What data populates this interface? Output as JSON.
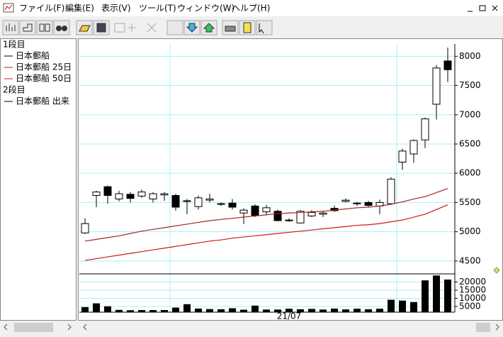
{
  "window": {
    "menu": [
      "ファイル(F)",
      "編集(E)",
      "表示(V)",
      "ツール(T)",
      "ウィンドウ(W)",
      "ヘルプ(H)"
    ]
  },
  "chart_data": {
    "type": "candlestick",
    "grid": true,
    "grid_color": "#a8f0f4",
    "categories": [
      null,
      null,
      null,
      null,
      null,
      null,
      null,
      null,
      null,
      null,
      null,
      null,
      null,
      null,
      null,
      null,
      null,
      null,
      "21/07",
      null,
      null,
      null,
      null,
      null,
      null,
      null,
      null,
      null,
      null,
      null,
      null,
      null,
      null
    ],
    "panes": [
      {
        "label": "1段目",
        "ylim": [
          4280,
          8210
        ],
        "yticks": [
          4500,
          5000,
          5500,
          6000,
          6500,
          7000,
          7500,
          8000
        ],
        "series": [
          {
            "name": "日本郵船",
            "type": "candlestick",
            "color": "#000000",
            "up_color": "#ffffff",
            "down_color": "#000000",
            "open": [
              4980,
              5620,
              5770,
              5560,
              5640,
              5610,
              5560,
              5630,
              5620,
              5520,
              5430,
              5540,
              5480,
              5490,
              5320,
              5440,
              5340,
              5350,
              5200,
              5150,
              5270,
              5300,
              5400,
              5520,
              5480,
              5500,
              5440,
              5480,
              6190,
              6330,
              6570,
              7180,
              7920
            ],
            "high": [
              5230,
              5700,
              5790,
              5700,
              5680,
              5720,
              5680,
              5680,
              5650,
              5560,
              5620,
              5650,
              5500,
              5560,
              5400,
              5470,
              5460,
              5380,
              5230,
              5370,
              5370,
              5360,
              5450,
              5570,
              5510,
              5530,
              5550,
              5930,
              6420,
              6580,
              6950,
              7850,
              8150
            ],
            "low": [
              4960,
              5420,
              5480,
              5520,
              5500,
              5580,
              5500,
              5530,
              5360,
              5300,
              5380,
              5500,
              5440,
              5380,
              5130,
              5250,
              5280,
              5180,
              5170,
              5140,
              5250,
              5250,
              5340,
              5500,
              5440,
              5420,
              5300,
              5460,
              6060,
              6180,
              6430,
              6920,
              7560
            ],
            "close": [
              5140,
              5680,
              5620,
              5650,
              5570,
              5680,
              5650,
              5650,
              5420,
              5530,
              5580,
              5560,
              5470,
              5420,
              5370,
              5280,
              5410,
              5190,
              5190,
              5350,
              5330,
              5320,
              5360,
              5540,
              5490,
              5450,
              5500,
              5900,
              6380,
              6560,
              6930,
              7800,
              7770
            ]
          },
          {
            "name": "日本郵船 25日",
            "type": "line",
            "color": "#a02828",
            "values": [
              4840,
              4870,
              4900,
              4930,
              4970,
              5010,
              5040,
              5070,
              5100,
              5130,
              5160,
              5190,
              5210,
              5230,
              5250,
              5270,
              5290,
              5310,
              5320,
              5330,
              5340,
              5350,
              5370,
              5390,
              5410,
              5420,
              5440,
              5470,
              5510,
              5560,
              5600,
              5670,
              5740
            ]
          },
          {
            "name": "日本郵船 50日",
            "type": "line",
            "color": "#d01818",
            "values": [
              4510,
              4540,
              4570,
              4600,
              4630,
              4660,
              4690,
              4720,
              4750,
              4780,
              4810,
              4840,
              4860,
              4890,
              4910,
              4930,
              4950,
              4970,
              4990,
              5010,
              5030,
              5050,
              5070,
              5090,
              5110,
              5120,
              5140,
              5170,
              5200,
              5250,
              5300,
              5380,
              5460
            ]
          }
        ]
      },
      {
        "label": "2段目",
        "ylim": [
          1500,
          25000
        ],
        "yticks": [
          5000,
          10000,
          15000,
          20000
        ],
        "series": [
          {
            "name": "日本郵船 出来",
            "type": "bar",
            "color": "#000000",
            "values": [
              4600,
              6900,
              5100,
              2900,
              2700,
              2800,
              2800,
              2800,
              4300,
              6400,
              3700,
              3400,
              3300,
              3900,
              3000,
              5500,
              3100,
              3100,
              3600,
              3300,
              3500,
              3100,
              3700,
              3200,
              3600,
              3300,
              3600,
              9100,
              8600,
              7700,
              21000,
              24000,
              21500
            ]
          }
        ]
      }
    ]
  }
}
